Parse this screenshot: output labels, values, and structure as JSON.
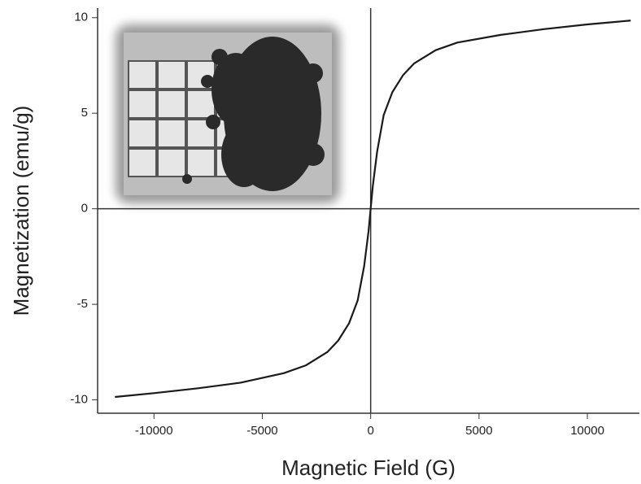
{
  "chart_data": {
    "type": "line",
    "x_label": "Magnetic Field (G)",
    "y_label": "Magnetization (emu/g)",
    "x": [
      -11800,
      -10000,
      -8000,
      -6000,
      -4000,
      -3000,
      -2000,
      -1500,
      -1000,
      -600,
      -300,
      -100,
      0,
      100,
      300,
      600,
      1000,
      1500,
      2000,
      3000,
      4000,
      6000,
      8000,
      10000,
      12000
    ],
    "values": [
      -9.85,
      -9.65,
      -9.4,
      -9.1,
      -8.6,
      -8.2,
      -7.5,
      -6.9,
      -6.0,
      -4.8,
      -3.0,
      -1.2,
      0,
      1.2,
      3.0,
      4.9,
      6.1,
      7.0,
      7.6,
      8.3,
      8.7,
      9.1,
      9.4,
      9.65,
      9.85
    ],
    "color": "#1a1a1a",
    "xlim": [
      -12600,
      12400
    ],
    "xticks": [
      -10000,
      -5000,
      0,
      5000,
      10000
    ],
    "ylim": [
      -10.7,
      10.5
    ],
    "yticks": [
      -10,
      -5,
      0,
      5,
      10
    ]
  }
}
